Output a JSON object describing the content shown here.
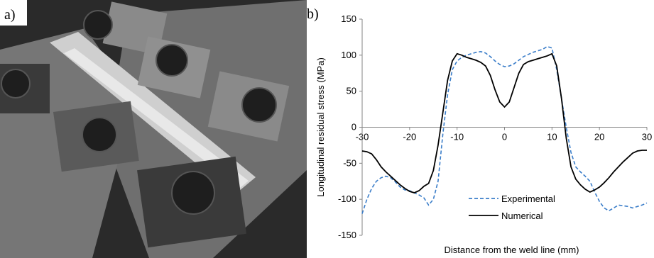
{
  "panels": {
    "a_label": "a)",
    "b_label": "b)"
  },
  "photo": {
    "colors": {
      "background": "#2a2a2a",
      "plate": "#7c7c7c",
      "clamp": "#3a3a3a",
      "bolt": "#1e1e1e",
      "weld": "#cfcfcf"
    }
  },
  "chart_data": {
    "type": "line",
    "xlabel": "Distance from the weld line (mm)",
    "ylabel": "Longitudinal residual stress (MPa)",
    "xlim": [
      -30,
      30
    ],
    "ylim": [
      -150,
      150
    ],
    "xticks": [
      -30,
      -20,
      -10,
      0,
      10,
      20,
      30
    ],
    "yticks": [
      150,
      100,
      50,
      0,
      -50,
      -100,
      -150
    ],
    "grid": false,
    "legend_position": "bottom-right",
    "series": [
      {
        "name": "Experimental",
        "style": "dashed",
        "color": "#3a7dc9",
        "x": [
          -30,
          -29,
          -28,
          -27,
          -26,
          -25,
          -24,
          -23,
          -22,
          -21,
          -20,
          -19,
          -18,
          -17,
          -16,
          -15,
          -14,
          -13,
          -12,
          -11,
          -10,
          -9,
          -8,
          -7,
          -6,
          -5,
          -4,
          -3,
          -2,
          -1,
          0,
          1,
          2,
          3,
          4,
          5,
          6,
          7,
          8,
          9,
          10,
          11,
          12,
          13,
          14,
          15,
          16,
          17,
          18,
          19,
          20,
          21,
          22,
          23,
          24,
          25,
          26,
          27,
          28,
          29,
          30
        ],
        "y": [
          -120,
          -100,
          -85,
          -75,
          -70,
          -68,
          -70,
          -76,
          -83,
          -87,
          -88,
          -91,
          -94,
          -98,
          -108,
          -100,
          -75,
          -10,
          45,
          80,
          92,
          97,
          100,
          102,
          104,
          105,
          103,
          98,
          92,
          87,
          84,
          85,
          88,
          93,
          98,
          101,
          104,
          106,
          108,
          112,
          110,
          80,
          40,
          0,
          -35,
          -55,
          -62,
          -68,
          -75,
          -90,
          -103,
          -112,
          -116,
          -112,
          -108,
          -109,
          -110,
          -112,
          -110,
          -108,
          -105
        ]
      },
      {
        "name": "Numerical",
        "style": "solid",
        "color": "#000000",
        "x": [
          -30,
          -29,
          -28,
          -27,
          -26,
          -25,
          -24,
          -23,
          -22,
          -21,
          -20,
          -19,
          -18,
          -17,
          -16,
          -15,
          -14,
          -13,
          -12,
          -11,
          -10,
          -9,
          -8,
          -7,
          -6,
          -5,
          -4,
          -3,
          -2,
          -1,
          0,
          1,
          2,
          3,
          4,
          5,
          6,
          7,
          8,
          9,
          10,
          11,
          12,
          13,
          14,
          15,
          16,
          17,
          18,
          19,
          20,
          21,
          22,
          23,
          24,
          25,
          26,
          27,
          28,
          29,
          30
        ],
        "y": [
          -33,
          -34,
          -37,
          -45,
          -55,
          -62,
          -68,
          -74,
          -80,
          -85,
          -89,
          -91,
          -88,
          -82,
          -78,
          -60,
          -25,
          20,
          65,
          92,
          102,
          100,
          97,
          95,
          93,
          90,
          85,
          72,
          52,
          35,
          28,
          35,
          55,
          75,
          87,
          91,
          93,
          95,
          97,
          99,
          102,
          85,
          40,
          -15,
          -55,
          -72,
          -80,
          -86,
          -90,
          -87,
          -83,
          -77,
          -70,
          -62,
          -55,
          -48,
          -42,
          -36,
          -33,
          -32,
          -32
        ]
      }
    ]
  }
}
